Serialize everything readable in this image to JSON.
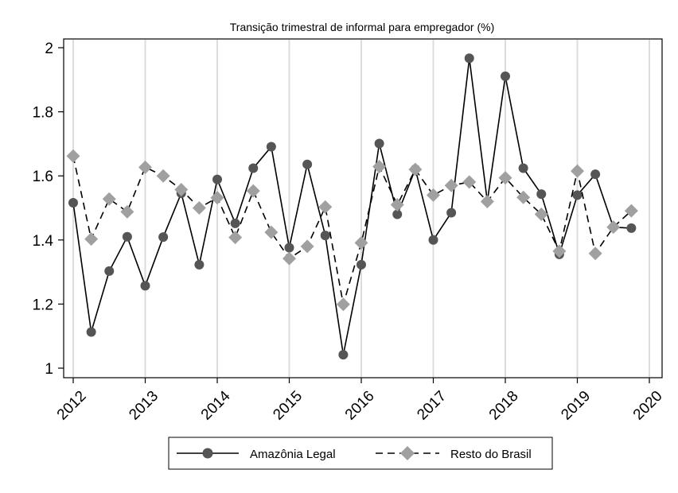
{
  "chart_data": {
    "type": "line",
    "title": "Transição trimestral de informal para empregador (%)",
    "xlabel": "",
    "ylabel": "",
    "xlim": [
      2012,
      2020
    ],
    "ylim": [
      1,
      2
    ],
    "x_ticks": [
      2012,
      2013,
      2014,
      2015,
      2016,
      2017,
      2018,
      2019,
      2020
    ],
    "x_tick_labels": [
      "2012",
      "2013",
      "2014",
      "2015",
      "2016",
      "2017",
      "2018",
      "2019",
      "2020"
    ],
    "y_ticks": [
      1,
      1.2,
      1.4,
      1.6,
      1.8,
      2
    ],
    "y_tick_labels": [
      "1",
      "1.2",
      "1.4",
      "1.6",
      "1.8",
      "2"
    ],
    "x": [
      2012.0,
      2012.25,
      2012.5,
      2012.75,
      2013.0,
      2013.25,
      2013.5,
      2013.75,
      2014.0,
      2014.25,
      2014.5,
      2014.75,
      2015.0,
      2015.25,
      2015.5,
      2015.75,
      2016.0,
      2016.25,
      2016.5,
      2016.75,
      2017.0,
      2017.25,
      2017.5,
      2017.75,
      2018.0,
      2018.25,
      2018.5,
      2018.75,
      2019.0,
      2019.25,
      2019.5,
      2019.75
    ],
    "series": [
      {
        "name": "Amazônia Legal",
        "line": "solid",
        "marker": "circle",
        "color": "#555555",
        "values": [
          1.516,
          1.113,
          1.303,
          1.41,
          1.257,
          1.409,
          1.546,
          1.323,
          1.589,
          1.452,
          1.624,
          1.691,
          1.376,
          1.636,
          1.414,
          1.042,
          1.323,
          1.701,
          1.48,
          1.621,
          1.4,
          1.485,
          1.967,
          1.52,
          1.911,
          1.624,
          1.543,
          1.355,
          1.54,
          1.605,
          1.44,
          1.437
        ]
      },
      {
        "name": "Resto do Brasil",
        "line": "dashed",
        "marker": "diamond",
        "color": "#a0a0a0",
        "values": [
          1.662,
          1.403,
          1.528,
          1.488,
          1.627,
          1.6,
          1.557,
          1.5,
          1.532,
          1.408,
          1.553,
          1.424,
          1.342,
          1.38,
          1.503,
          1.199,
          1.391,
          1.629,
          1.51,
          1.62,
          1.54,
          1.57,
          1.581,
          1.52,
          1.594,
          1.533,
          1.48,
          1.365,
          1.615,
          1.358,
          1.44,
          1.491
        ]
      }
    ],
    "grid": "vertical",
    "legend": "bottom"
  }
}
